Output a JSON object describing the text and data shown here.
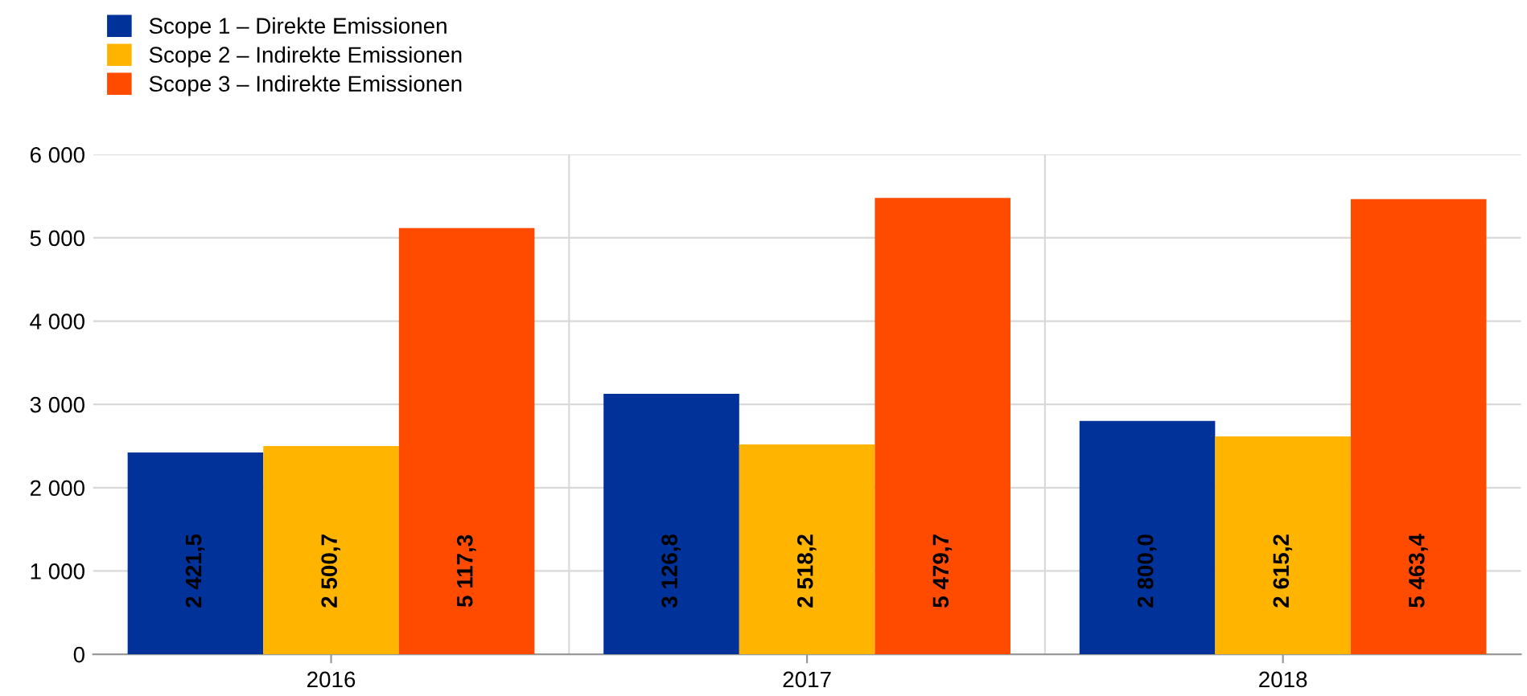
{
  "chart_data": {
    "type": "bar",
    "categories": [
      "2016",
      "2017",
      "2018"
    ],
    "series": [
      {
        "name": "Scope 1 – Direkte Emissionen",
        "color": "#003299",
        "values": [
          2421.5,
          3126.8,
          2800.0
        ],
        "value_labels": [
          "2 421,5",
          "3 126,8",
          "2 800,0"
        ]
      },
      {
        "name": "Scope 2 – Indirekte Emissionen",
        "color": "#ffb400",
        "values": [
          2500.7,
          2518.2,
          2615.2
        ],
        "value_labels": [
          "2 500,7",
          "2 518,2",
          "2 615,2"
        ]
      },
      {
        "name": "Scope 3 – Indirekte Emissionen",
        "color": "#ff4b00",
        "values": [
          5117.3,
          5479.7,
          5463.4
        ],
        "value_labels": [
          "5 117,3",
          "5 479,7",
          "5 463,4"
        ]
      }
    ],
    "ylim": [
      0,
      6000
    ],
    "yticks": [
      {
        "value": 0,
        "label": "0"
      },
      {
        "value": 1000,
        "label": "1 000"
      },
      {
        "value": 2000,
        "label": "2 000"
      },
      {
        "value": 3000,
        "label": "3 000"
      },
      {
        "value": 4000,
        "label": "4 000"
      },
      {
        "value": 5000,
        "label": "5 000"
      },
      {
        "value": 6000,
        "label": "6 000"
      }
    ],
    "grid": true,
    "legend": "top left"
  }
}
